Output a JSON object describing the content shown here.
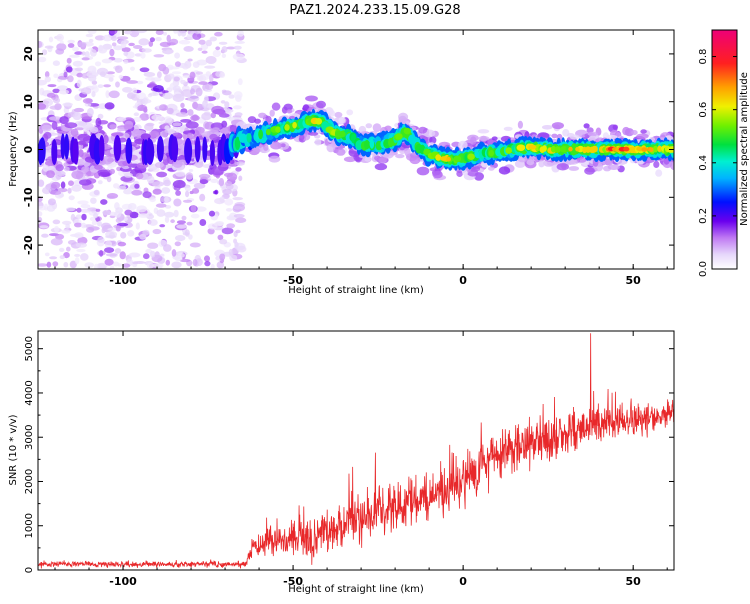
{
  "title": "PAZ1.2024.233.15.09.G28",
  "chart_data": [
    {
      "type": "heatmap",
      "xlabel": "Height of straight line (km)",
      "ylabel": "Frequency (Hz)",
      "xlim": [
        -125,
        62
      ],
      "ylim": [
        -25,
        25
      ],
      "xticks": [
        -100,
        -50,
        0,
        50
      ],
      "yticks": [
        -20,
        -10,
        0,
        10,
        20
      ],
      "colorbar": {
        "label": "Normalized spectral amplitude",
        "range": [
          0,
          0.9
        ],
        "ticks": [
          0.0,
          0.2,
          0.4,
          0.6,
          0.8
        ],
        "tick_labels": [
          "0.0",
          "0.2",
          "0.4",
          "0.6",
          "0.8"
        ]
      },
      "ridge": {
        "x": [
          -125,
          -110,
          -100,
          -90,
          -80,
          -70,
          -65,
          -60,
          -55,
          -50,
          -45,
          -42,
          -38,
          -34,
          -30,
          -25,
          -20,
          -17,
          -14,
          -10,
          -5,
          0,
          5,
          10,
          15,
          20,
          25,
          30,
          35,
          40,
          45,
          50,
          55,
          62
        ],
        "freq": [
          0,
          0,
          0,
          0,
          0,
          0,
          2,
          3,
          4,
          5,
          6,
          6,
          3.5,
          3,
          1,
          1,
          2,
          4,
          1,
          -1,
          -2,
          -2,
          -1,
          -0.5,
          0,
          0.5,
          0,
          0,
          0,
          0,
          0,
          0,
          0,
          0
        ],
        "peak_amplitude": [
          0.15,
          0.15,
          0.15,
          0.15,
          0.15,
          0.15,
          0.4,
          0.5,
          0.55,
          0.6,
          0.65,
          0.65,
          0.6,
          0.55,
          0.5,
          0.5,
          0.55,
          0.6,
          0.55,
          0.55,
          0.75,
          0.6,
          0.55,
          0.55,
          0.6,
          0.65,
          0.65,
          0.7,
          0.7,
          0.7,
          0.85,
          0.85,
          0.7,
          0.6
        ]
      }
    },
    {
      "type": "line",
      "xlabel": "Height of straight line (km)",
      "ylabel": "SNR (10 * v/v)",
      "xlim": [
        -125,
        62
      ],
      "ylim": [
        0,
        5400
      ],
      "xticks": [
        -100,
        -50,
        0,
        50
      ],
      "yticks": [
        0,
        1000,
        2000,
        3000,
        4000,
        5000
      ],
      "color": "#e8282a",
      "envelope": {
        "x": [
          -125,
          -110,
          -90,
          -70,
          -64,
          -62,
          -58,
          -55,
          -50,
          -45,
          -40,
          -35,
          -30,
          -25,
          -20,
          -15,
          -10,
          -5,
          0,
          5,
          10,
          15,
          20,
          25,
          30,
          35,
          37,
          40,
          45,
          50,
          55,
          62
        ],
        "mean": [
          130,
          130,
          130,
          130,
          130,
          500,
          650,
          650,
          750,
          650,
          850,
          1000,
          1200,
          1350,
          1450,
          1550,
          1650,
          1750,
          2050,
          2300,
          2500,
          2700,
          2800,
          3000,
          3050,
          3200,
          3300,
          3350,
          3350,
          3400,
          3450,
          3550
        ],
        "spread": [
          80,
          80,
          80,
          80,
          80,
          250,
          350,
          400,
          500,
          600,
          650,
          700,
          650,
          650,
          700,
          700,
          700,
          700,
          700,
          650,
          600,
          600,
          600,
          600,
          550,
          550,
          550,
          550,
          500,
          450,
          400,
          350
        ]
      },
      "peak_x": 37.5,
      "peak_value": 5350
    }
  ]
}
